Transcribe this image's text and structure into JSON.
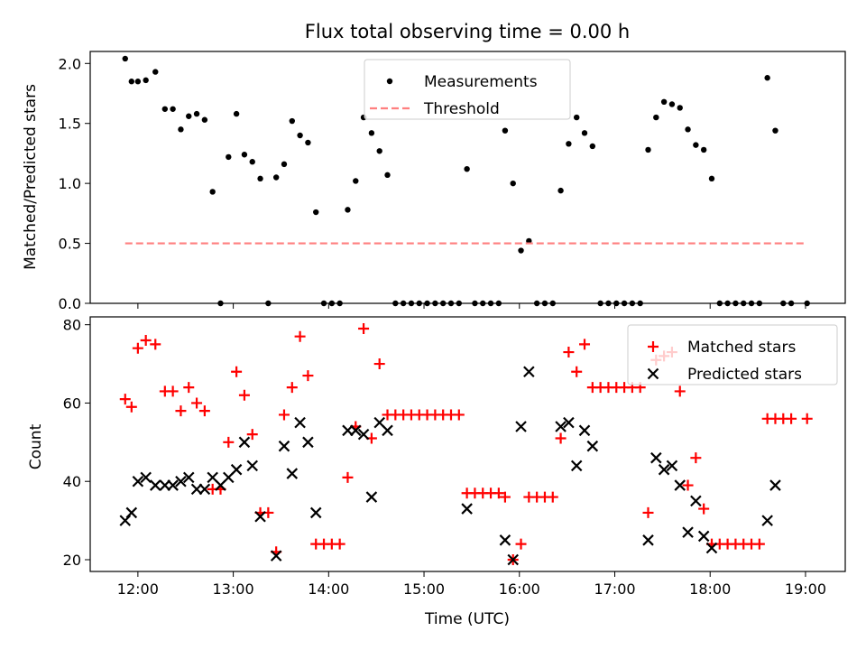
{
  "figure": {
    "title": "Flux total observing time = 0.00 h",
    "xlabel": "Time (UTC)"
  },
  "chart_data": [
    {
      "type": "scatter",
      "panel": "top",
      "ylabel": "Matched/Predicted stars",
      "xlim": [
        "11:30",
        "19:25"
      ],
      "ylim": [
        0,
        2.1
      ],
      "yticks": [
        "0.0",
        "0.5",
        "1.0",
        "1.5",
        "2.0"
      ],
      "legend": {
        "position": "top-center",
        "entries": [
          "Measurements",
          "Threshold"
        ]
      },
      "series": [
        {
          "name": "Measurements",
          "marker": "dot",
          "color": "#000000",
          "points": [
            [
              "11:52",
              2.04
            ],
            [
              "11:56",
              1.85
            ],
            [
              "12:00",
              1.85
            ],
            [
              "12:05",
              1.86
            ],
            [
              "12:11",
              1.93
            ],
            [
              "12:17",
              1.62
            ],
            [
              "12:22",
              1.62
            ],
            [
              "12:27",
              1.45
            ],
            [
              "12:32",
              1.56
            ],
            [
              "12:37",
              1.58
            ],
            [
              "12:42",
              1.53
            ],
            [
              "12:47",
              0.93
            ],
            [
              "12:52",
              0.0
            ],
            [
              "12:57",
              1.22
            ],
            [
              "13:02",
              1.58
            ],
            [
              "13:07",
              1.24
            ],
            [
              "13:12",
              1.18
            ],
            [
              "13:17",
              1.04
            ],
            [
              "13:22",
              0.0
            ],
            [
              "13:27",
              1.05
            ],
            [
              "13:32",
              1.16
            ],
            [
              "13:37",
              1.52
            ],
            [
              "13:42",
              1.4
            ],
            [
              "13:47",
              1.34
            ],
            [
              "13:52",
              0.76
            ],
            [
              "13:57",
              0.0
            ],
            [
              "14:02",
              0.0
            ],
            [
              "14:07",
              0.0
            ],
            [
              "14:12",
              0.78
            ],
            [
              "14:17",
              1.02
            ],
            [
              "14:22",
              1.55
            ],
            [
              "14:27",
              1.42
            ],
            [
              "14:32",
              1.27
            ],
            [
              "14:37",
              1.07
            ],
            [
              "14:42",
              0.0
            ],
            [
              "14:47",
              0.0
            ],
            [
              "14:52",
              0.0
            ],
            [
              "14:57",
              0.0
            ],
            [
              "15:02",
              0.0
            ],
            [
              "15:07",
              0.0
            ],
            [
              "15:12",
              0.0
            ],
            [
              "15:17",
              0.0
            ],
            [
              "15:22",
              0.0
            ],
            [
              "15:27",
              1.12
            ],
            [
              "15:32",
              0.0
            ],
            [
              "15:37",
              0.0
            ],
            [
              "15:42",
              0.0
            ],
            [
              "15:47",
              0.0
            ],
            [
              "15:51",
              1.44
            ],
            [
              "15:56",
              1.0
            ],
            [
              "16:01",
              0.44
            ],
            [
              "16:06",
              0.52
            ],
            [
              "16:11",
              0.0
            ],
            [
              "16:16",
              0.0
            ],
            [
              "16:21",
              0.0
            ],
            [
              "16:26",
              0.94
            ],
            [
              "16:31",
              1.33
            ],
            [
              "16:36",
              1.55
            ],
            [
              "16:41",
              1.42
            ],
            [
              "16:46",
              1.31
            ],
            [
              "16:51",
              0.0
            ],
            [
              "16:56",
              0.0
            ],
            [
              "17:01",
              0.0
            ],
            [
              "17:06",
              0.0
            ],
            [
              "17:11",
              0.0
            ],
            [
              "17:16",
              0.0
            ],
            [
              "17:21",
              1.28
            ],
            [
              "17:26",
              1.55
            ],
            [
              "17:31",
              1.68
            ],
            [
              "17:36",
              1.66
            ],
            [
              "17:41",
              1.63
            ],
            [
              "17:46",
              1.45
            ],
            [
              "17:51",
              1.32
            ],
            [
              "17:56",
              1.28
            ],
            [
              "18:01",
              1.04
            ],
            [
              "18:06",
              0.0
            ],
            [
              "18:11",
              0.0
            ],
            [
              "18:16",
              0.0
            ],
            [
              "18:21",
              0.0
            ],
            [
              "18:26",
              0.0
            ],
            [
              "18:31",
              0.0
            ],
            [
              "18:36",
              1.88
            ],
            [
              "18:41",
              1.44
            ],
            [
              "18:46",
              0.0
            ],
            [
              "18:51",
              0.0
            ],
            [
              "19:01",
              0.0
            ]
          ]
        },
        {
          "name": "Threshold",
          "style": "dashed",
          "color": "#ff7f7f",
          "points": [
            [
              "11:52",
              0.5
            ],
            [
              "19:00",
              0.5
            ]
          ]
        }
      ]
    },
    {
      "type": "scatter",
      "panel": "bottom",
      "ylabel": "Count",
      "xlabel": "Time (UTC)",
      "xlim": [
        "11:30",
        "19:25"
      ],
      "ylim": [
        17,
        82
      ],
      "yticks": [
        "20",
        "40",
        "60",
        "80"
      ],
      "xticks": [
        "12:00",
        "13:00",
        "14:00",
        "15:00",
        "16:00",
        "17:00",
        "18:00",
        "19:00"
      ],
      "legend": {
        "position": "top-right",
        "entries": [
          "Matched stars",
          "Predicted stars"
        ]
      },
      "series": [
        {
          "name": "Matched stars",
          "marker": "plus",
          "color": "#ff0000",
          "points": [
            [
              "11:52",
              61
            ],
            [
              "11:56",
              59
            ],
            [
              "12:00",
              74
            ],
            [
              "12:05",
              76
            ],
            [
              "12:11",
              75
            ],
            [
              "12:17",
              63
            ],
            [
              "12:22",
              63
            ],
            [
              "12:27",
              58
            ],
            [
              "12:32",
              64
            ],
            [
              "12:37",
              60
            ],
            [
              "12:42",
              58
            ],
            [
              "12:47",
              38
            ],
            [
              "12:52",
              38
            ],
            [
              "12:57",
              50
            ],
            [
              "13:02",
              68
            ],
            [
              "13:07",
              62
            ],
            [
              "13:12",
              52
            ],
            [
              "13:17",
              32
            ],
            [
              "13:22",
              32
            ],
            [
              "13:27",
              22
            ],
            [
              "13:32",
              57
            ],
            [
              "13:37",
              64
            ],
            [
              "13:42",
              77
            ],
            [
              "13:47",
              67
            ],
            [
              "13:52",
              24
            ],
            [
              "13:57",
              24
            ],
            [
              "14:02",
              24
            ],
            [
              "14:07",
              24
            ],
            [
              "14:12",
              41
            ],
            [
              "14:17",
              54
            ],
            [
              "14:22",
              79
            ],
            [
              "14:27",
              51
            ],
            [
              "14:32",
              70
            ],
            [
              "14:37",
              57
            ],
            [
              "14:42",
              57
            ],
            [
              "14:47",
              57
            ],
            [
              "14:52",
              57
            ],
            [
              "14:57",
              57
            ],
            [
              "15:02",
              57
            ],
            [
              "15:07",
              57
            ],
            [
              "15:12",
              57
            ],
            [
              "15:17",
              57
            ],
            [
              "15:22",
              57
            ],
            [
              "15:27",
              37
            ],
            [
              "15:32",
              37
            ],
            [
              "15:37",
              37
            ],
            [
              "15:42",
              37
            ],
            [
              "15:47",
              37
            ],
            [
              "15:51",
              36
            ],
            [
              "15:56",
              20
            ],
            [
              "16:01",
              24
            ],
            [
              "16:06",
              36
            ],
            [
              "16:11",
              36
            ],
            [
              "16:16",
              36
            ],
            [
              "16:21",
              36
            ],
            [
              "16:26",
              51
            ],
            [
              "16:31",
              73
            ],
            [
              "16:36",
              68
            ],
            [
              "16:41",
              75
            ],
            [
              "16:46",
              64
            ],
            [
              "16:51",
              64
            ],
            [
              "16:56",
              64
            ],
            [
              "17:01",
              64
            ],
            [
              "17:06",
              64
            ],
            [
              "17:11",
              64
            ],
            [
              "17:16",
              64
            ],
            [
              "17:21",
              32
            ],
            [
              "17:26",
              71
            ],
            [
              "17:31",
              72
            ],
            [
              "17:36",
              73
            ],
            [
              "17:41",
              63
            ],
            [
              "17:46",
              39
            ],
            [
              "17:51",
              46
            ],
            [
              "17:56",
              33
            ],
            [
              "18:01",
              24
            ],
            [
              "18:06",
              24
            ],
            [
              "18:11",
              24
            ],
            [
              "18:16",
              24
            ],
            [
              "18:21",
              24
            ],
            [
              "18:26",
              24
            ],
            [
              "18:31",
              24
            ],
            [
              "18:36",
              56
            ],
            [
              "18:41",
              56
            ],
            [
              "18:46",
              56
            ],
            [
              "18:51",
              56
            ],
            [
              "19:01",
              56
            ]
          ]
        },
        {
          "name": "Predicted stars",
          "marker": "x",
          "color": "#000000",
          "points": [
            [
              "11:52",
              30
            ],
            [
              "11:56",
              32
            ],
            [
              "12:00",
              40
            ],
            [
              "12:05",
              41
            ],
            [
              "12:11",
              39
            ],
            [
              "12:17",
              39
            ],
            [
              "12:22",
              39
            ],
            [
              "12:27",
              40
            ],
            [
              "12:32",
              41
            ],
            [
              "12:37",
              38
            ],
            [
              "12:42",
              38
            ],
            [
              "12:47",
              41
            ],
            [
              "12:52",
              39
            ],
            [
              "12:57",
              41
            ],
            [
              "13:02",
              43
            ],
            [
              "13:07",
              50
            ],
            [
              "13:12",
              44
            ],
            [
              "13:17",
              31
            ],
            [
              "13:27",
              21
            ],
            [
              "13:32",
              49
            ],
            [
              "13:37",
              42
            ],
            [
              "13:42",
              55
            ],
            [
              "13:47",
              50
            ],
            [
              "13:52",
              32
            ],
            [
              "14:12",
              53
            ],
            [
              "14:17",
              53
            ],
            [
              "14:22",
              52
            ],
            [
              "14:27",
              36
            ],
            [
              "14:32",
              55
            ],
            [
              "14:37",
              53
            ],
            [
              "15:27",
              33
            ],
            [
              "15:51",
              25
            ],
            [
              "15:56",
              20
            ],
            [
              "16:01",
              54
            ],
            [
              "16:06",
              68
            ],
            [
              "16:26",
              54
            ],
            [
              "16:31",
              55
            ],
            [
              "16:36",
              44
            ],
            [
              "16:41",
              53
            ],
            [
              "16:46",
              49
            ],
            [
              "17:21",
              25
            ],
            [
              "17:26",
              46
            ],
            [
              "17:31",
              43
            ],
            [
              "17:36",
              44
            ],
            [
              "17:41",
              39
            ],
            [
              "17:46",
              27
            ],
            [
              "17:51",
              35
            ],
            [
              "17:56",
              26
            ],
            [
              "18:01",
              23
            ],
            [
              "18:36",
              30
            ],
            [
              "18:41",
              39
            ]
          ]
        }
      ]
    }
  ]
}
